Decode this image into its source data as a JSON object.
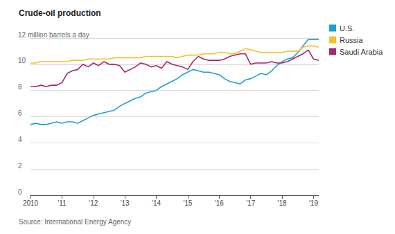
{
  "chart_data": {
    "type": "line",
    "title": "Crude-oil production",
    "source": "Source: International Energy Agency",
    "categories": [
      "2010",
      null,
      null,
      null,
      null,
      null,
      "'11",
      null,
      null,
      null,
      null,
      null,
      "'12",
      null,
      null,
      null,
      null,
      null,
      "'13",
      null,
      null,
      null,
      null,
      null,
      "'14",
      null,
      null,
      null,
      null,
      null,
      "'15",
      null,
      null,
      null,
      null,
      null,
      "'16",
      null,
      null,
      null,
      null,
      null,
      "'17",
      null,
      null,
      null,
      null,
      null,
      "'18",
      null,
      null,
      null,
      null,
      null,
      "'19",
      null
    ],
    "series": [
      {
        "name": "U.S.",
        "color": "#1f9fd0",
        "values": [
          5.4,
          5.5,
          5.4,
          5.4,
          5.5,
          5.6,
          5.5,
          5.6,
          5.6,
          5.5,
          5.7,
          5.9,
          6.1,
          6.2,
          6.3,
          6.4,
          6.5,
          6.8,
          7.0,
          7.2,
          7.4,
          7.5,
          7.8,
          7.9,
          8.0,
          8.3,
          8.5,
          8.7,
          8.9,
          9.2,
          9.4,
          9.6,
          9.5,
          9.4,
          9.4,
          9.3,
          9.2,
          8.9,
          8.7,
          8.6,
          8.5,
          8.8,
          8.9,
          9.1,
          9.3,
          9.2,
          9.5,
          9.9,
          10.2,
          10.4,
          10.5,
          10.9,
          11.4,
          11.9,
          11.9,
          11.9
        ]
      },
      {
        "name": "Russia",
        "color": "#f2c12e",
        "values": [
          10.1,
          10.1,
          10.2,
          10.2,
          10.2,
          10.2,
          10.2,
          10.2,
          10.3,
          10.3,
          10.3,
          10.4,
          10.4,
          10.4,
          10.4,
          10.4,
          10.5,
          10.5,
          10.5,
          10.5,
          10.5,
          10.5,
          10.6,
          10.6,
          10.6,
          10.6,
          10.6,
          10.6,
          10.5,
          10.6,
          10.7,
          10.7,
          10.7,
          10.8,
          10.8,
          10.8,
          10.9,
          10.9,
          10.8,
          10.8,
          11.0,
          11.2,
          11.1,
          11.0,
          10.9,
          10.9,
          10.9,
          10.9,
          10.9,
          11.0,
          11.0,
          11.0,
          11.3,
          11.4,
          11.4,
          11.3
        ]
      },
      {
        "name": "Saudi Arabia",
        "color": "#a3286f",
        "values": [
          8.3,
          8.3,
          8.4,
          8.3,
          8.4,
          8.4,
          8.6,
          9.3,
          9.5,
          9.6,
          10.0,
          9.8,
          10.1,
          9.9,
          10.2,
          10.0,
          10.0,
          9.9,
          9.4,
          9.6,
          9.8,
          10.1,
          10.0,
          9.8,
          9.9,
          9.7,
          10.2,
          10.0,
          9.9,
          9.8,
          9.6,
          10.2,
          10.6,
          10.4,
          10.3,
          10.3,
          10.3,
          10.4,
          10.6,
          10.7,
          10.8,
          10.8,
          10.0,
          10.1,
          10.1,
          10.1,
          10.2,
          10.1,
          10.1,
          10.2,
          10.4,
          10.6,
          10.8,
          11.1,
          10.4,
          10.3
        ]
      }
    ],
    "ylim": [
      0,
      12
    ],
    "yticks": [
      0,
      2,
      4,
      6,
      8,
      10,
      {
        "value": 12,
        "label": "12 million barrels a day"
      }
    ],
    "grid": true,
    "legend": "right"
  }
}
